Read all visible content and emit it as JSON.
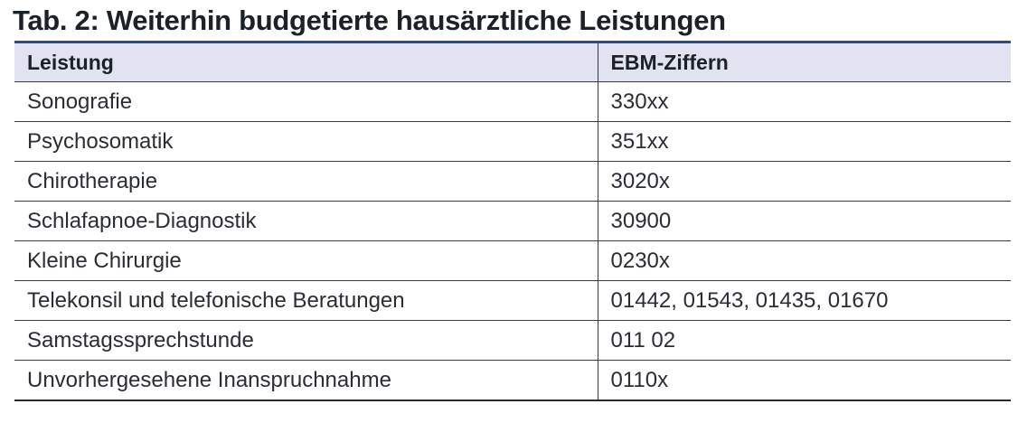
{
  "title": "Tab. 2: Weiterhin budgetierte hausärztliche Leistungen",
  "table": {
    "headers": [
      "Leistung",
      "EBM-Ziffern"
    ],
    "rows": [
      [
        "Sonografie",
        "330xx"
      ],
      [
        "Psychosomatik",
        "351xx"
      ],
      [
        "Chirotherapie",
        "3020x"
      ],
      [
        "Schlafapnoe-Diagnostik",
        "30900"
      ],
      [
        "Kleine Chirurgie",
        "0230x"
      ],
      [
        "Telekonsil und telefonische Beratungen",
        "01442, 01543, 01435, 01670"
      ],
      [
        "Samstagssprechstunde",
        "011 02"
      ],
      [
        "Unvorhergesehene Inanspruchnahme",
        "0110x"
      ]
    ]
  },
  "colors": {
    "header_background": "#e1e3f0",
    "top_rule": "#2b4b8c",
    "text": "#1f2228"
  }
}
